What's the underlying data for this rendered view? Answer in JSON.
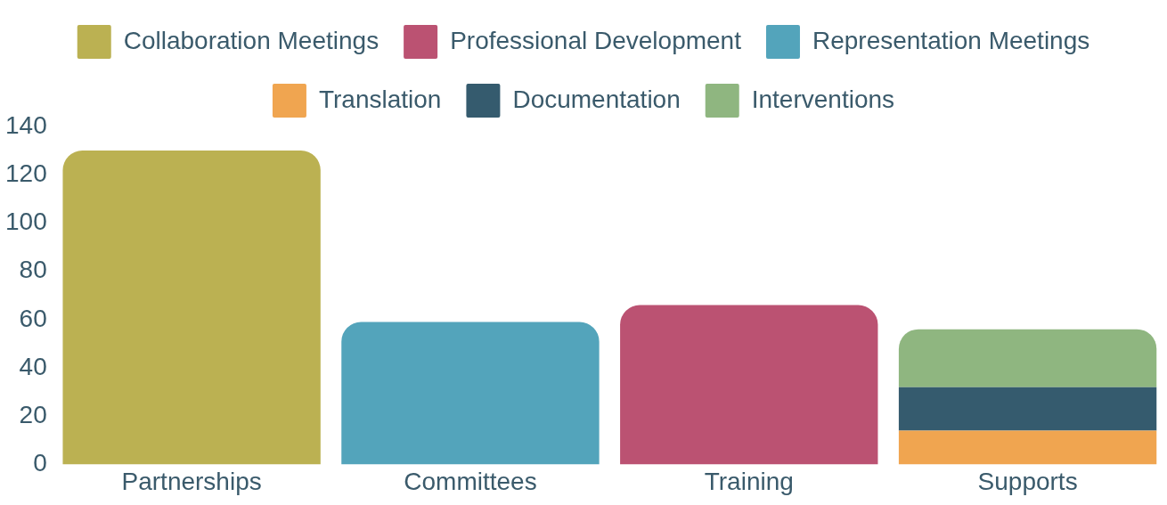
{
  "chart_data": {
    "type": "bar",
    "stacked": true,
    "categories": [
      "Partnerships",
      "Committees",
      "Training",
      "Supports"
    ],
    "series": [
      {
        "name": "Collaboration Meetings",
        "color": "#bbb152",
        "values": [
          130,
          null,
          null,
          null
        ]
      },
      {
        "name": "Professional Development",
        "color": "#bb5272",
        "values": [
          null,
          null,
          66,
          null
        ]
      },
      {
        "name": "Representation Meetings",
        "color": "#53a4bb",
        "values": [
          null,
          59,
          null,
          null
        ]
      },
      {
        "name": "Translation",
        "color": "#f0a550",
        "values": [
          null,
          null,
          null,
          14
        ]
      },
      {
        "name": "Documentation",
        "color": "#355b6e",
        "values": [
          null,
          null,
          null,
          18
        ]
      },
      {
        "name": "Interventions",
        "color": "#8fb680",
        "values": [
          null,
          null,
          null,
          24
        ]
      }
    ],
    "ylim": [
      0,
      140
    ],
    "yticks": [
      0,
      20,
      40,
      60,
      80,
      100,
      120,
      140
    ],
    "grid": false,
    "legend": "top"
  }
}
